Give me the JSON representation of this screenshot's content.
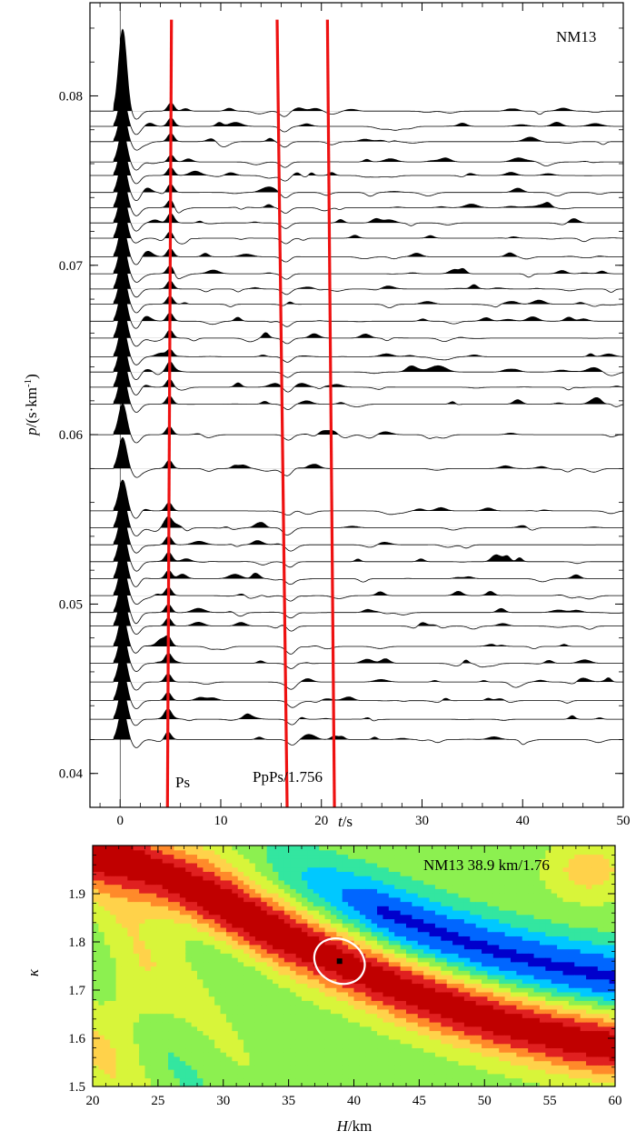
{
  "chart_data": [
    {
      "type": "line",
      "station_label": "NM13",
      "xlabel_italic": "t",
      "xlabel_rest": "/s",
      "ylabel_italic": "p",
      "ylabel_rest": "/(s·km",
      "ylabel_sup": "-1",
      "ylabel_close": ")",
      "xlim": [
        -3,
        50
      ],
      "ylim": [
        0.038,
        0.0855
      ],
      "x_ticks": [
        0,
        10,
        20,
        30,
        40,
        50
      ],
      "y_ticks": [
        0.04,
        0.05,
        0.06,
        0.07,
        0.08
      ],
      "y_tick_labels": [
        "0.04",
        "0.05",
        "0.06",
        "0.07",
        "0.08"
      ],
      "trace_ray_parameters": [
        0.0791,
        0.0782,
        0.0773,
        0.0761,
        0.0753,
        0.0743,
        0.0734,
        0.0725,
        0.0716,
        0.0705,
        0.0695,
        0.0686,
        0.0677,
        0.0667,
        0.0657,
        0.0646,
        0.0637,
        0.0628,
        0.0618,
        0.06,
        0.058,
        0.0555,
        0.0545,
        0.0535,
        0.0525,
        0.0515,
        0.0505,
        0.0495,
        0.0487,
        0.0475,
        0.0465,
        0.0454,
        0.0443,
        0.0432,
        0.042
      ],
      "phase_lines": [
        {
          "label": "Ps",
          "t": [
            5.1,
            4.7
          ],
          "p": [
            0.0845,
            0.0378
          ]
        },
        {
          "label": "PpPs/1.756",
          "t": [
            15.6,
            16.6
          ],
          "p": [
            0.0845,
            0.0378
          ]
        },
        {
          "label": "",
          "t": [
            20.6,
            21.3
          ],
          "p": [
            0.0845,
            0.0378
          ]
        }
      ],
      "phase_colors": {
        "line": "#ee1111",
        "fill": "#000000"
      }
    },
    {
      "type": "heatmap",
      "title": "NM13 38.9 km/1.76",
      "xlabel_italic": "H",
      "xlabel_rest": "/km",
      "ylabel_italic": "κ",
      "xlim": [
        20,
        60
      ],
      "ylim": [
        1.5,
        2.0
      ],
      "x_ticks": [
        20,
        25,
        30,
        35,
        40,
        45,
        50,
        55,
        60
      ],
      "y_ticks": [
        1.5,
        1.6,
        1.7,
        1.8,
        1.9
      ],
      "y_tick_labels": [
        "1.5",
        "1.6",
        "1.7",
        "1.8",
        "1.9"
      ],
      "best_H": 38.9,
      "best_kappa": 1.76,
      "ellipse": {
        "center": [
          38.9,
          1.76
        ],
        "half_width_H": 2.0,
        "half_height_kappa": 0.045,
        "rotation_deg": 28
      },
      "colormap": [
        "#0000cc",
        "#0066ff",
        "#00c8ff",
        "#33e6a0",
        "#8cf050",
        "#d8f53a",
        "#ffd24a",
        "#ff8a2a",
        "#e02020",
        "#c00000"
      ]
    }
  ]
}
